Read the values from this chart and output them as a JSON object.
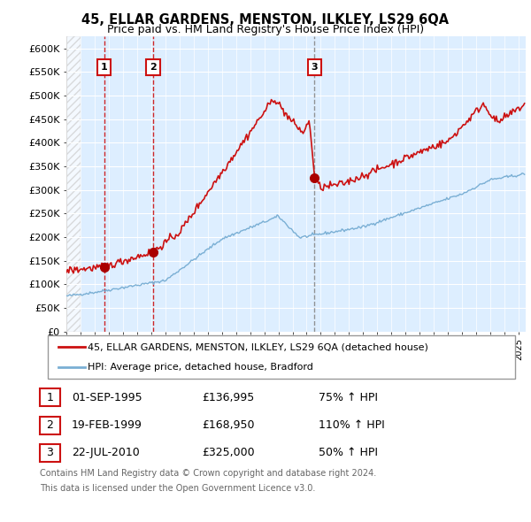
{
  "title": "45, ELLAR GARDENS, MENSTON, ILKLEY, LS29 6QA",
  "subtitle": "Price paid vs. HM Land Registry's House Price Index (HPI)",
  "ylabel_ticks": [
    "£0",
    "£50K",
    "£100K",
    "£150K",
    "£200K",
    "£250K",
    "£300K",
    "£350K",
    "£400K",
    "£450K",
    "£500K",
    "£550K",
    "£600K"
  ],
  "ytick_values": [
    0,
    50000,
    100000,
    150000,
    200000,
    250000,
    300000,
    350000,
    400000,
    450000,
    500000,
    550000,
    600000
  ],
  "ylim": [
    0,
    625000
  ],
  "xlim_start": 1993.0,
  "xlim_end": 2025.5,
  "sale_points": [
    {
      "label": "1",
      "date_str": "01-SEP-1995",
      "year": 1995.67,
      "price": 136995
    },
    {
      "label": "2",
      "date_str": "19-FEB-1999",
      "year": 1999.13,
      "price": 168950
    },
    {
      "label": "3",
      "date_str": "22-JUL-2010",
      "year": 2010.55,
      "price": 325000
    }
  ],
  "legend_line1": "45, ELLAR GARDENS, MENSTON, ILKLEY, LS29 6QA (detached house)",
  "legend_line2": "HPI: Average price, detached house, Bradford",
  "table_rows": [
    {
      "num": "1",
      "date": "01-SEP-1995",
      "price": "£136,995",
      "hpi": "75% ↑ HPI"
    },
    {
      "num": "2",
      "date": "19-FEB-1999",
      "price": "£168,950",
      "hpi": "110% ↑ HPI"
    },
    {
      "num": "3",
      "date": "22-JUL-2010",
      "price": "£325,000",
      "hpi": "50% ↑ HPI"
    }
  ],
  "footer1": "Contains HM Land Registry data © Crown copyright and database right 2024.",
  "footer2": "This data is licensed under the Open Government Licence v3.0.",
  "property_line_color": "#cc1111",
  "hpi_line_color": "#7aafd4",
  "sale_dot_color": "#aa0000",
  "chart_bg_color": "#ddeeff",
  "grid_color": "#ffffff",
  "dashed_line_color_red": "#cc1111",
  "dashed_line_color_gray": "#888888",
  "box_label_color": "#cc1111"
}
